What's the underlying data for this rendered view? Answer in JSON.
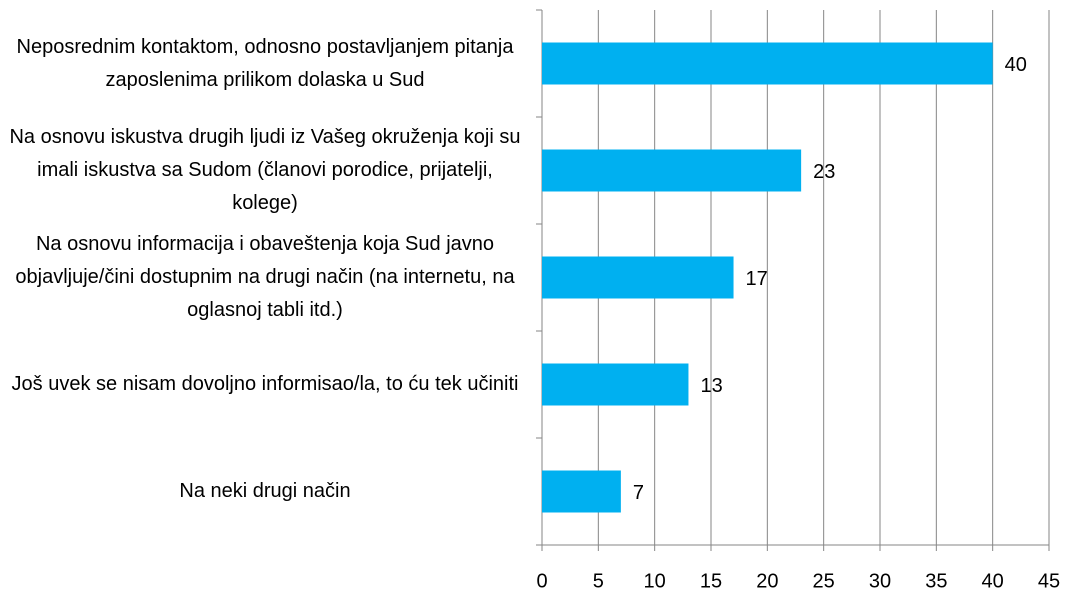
{
  "chart_data": {
    "type": "bar",
    "orientation": "horizontal",
    "categories": [
      "Neposrednim kontaktom, odnosno postavljanjem pitanja zaposlenima prilikom dolaska u Sud",
      "Na osnovu iskustva drugih ljudi iz Vašeg okruženja koji su imali iskustva sa Sudom (članovi porodice, prijatelji, kolege)",
      "Na osnovu informacija i obaveštenja koja Sud javno objavljuje/čini dostupnim na drugi način (na internetu, na oglasnoj tabli itd.)",
      "Još uvek se nisam dovoljno informisao/la, to ću tek učiniti",
      "Na neki drugi način"
    ],
    "values": [
      40,
      23,
      17,
      13,
      7
    ],
    "color": "#00b0f0",
    "xlim": [
      0,
      45
    ],
    "xticks": [
      0,
      5,
      10,
      15,
      20,
      25,
      30,
      35,
      40,
      45
    ],
    "grid": true
  }
}
